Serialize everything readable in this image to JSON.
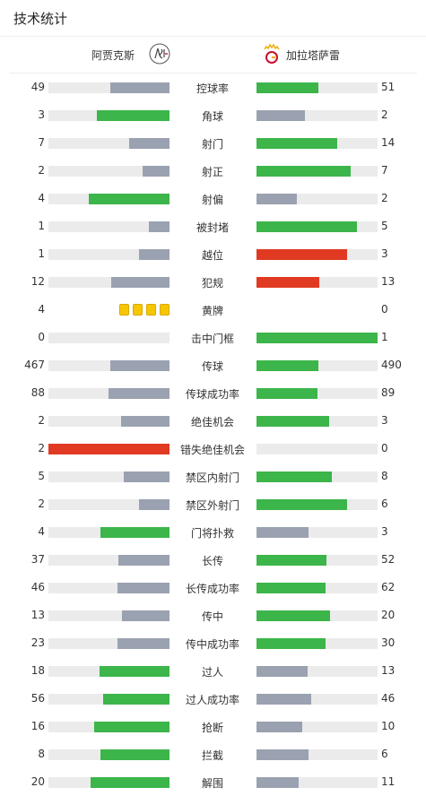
{
  "header": {
    "title": "技术统计"
  },
  "teams": {
    "home": {
      "name": "阿贾克斯",
      "logo_icon": "ajax-crest-icon"
    },
    "away": {
      "name": "加拉塔萨雷",
      "logo_icon": "galatasaray-crest-icon"
    }
  },
  "colors": {
    "green": "#3cb54a",
    "gray": "#9aa1b0",
    "red": "#e03a22",
    "track": "#ebebeb",
    "yellow": "#f6c700"
  },
  "stats": [
    {
      "label": "控球率",
      "home": 49,
      "away": 51,
      "home_fill": 0.49,
      "away_fill": 0.51,
      "home_color": "gray",
      "away_color": "green"
    },
    {
      "label": "角球",
      "home": 3,
      "away": 2,
      "home_fill": 0.6,
      "away_fill": 0.4,
      "home_color": "green",
      "away_color": "gray"
    },
    {
      "label": "射门",
      "home": 7,
      "away": 14,
      "home_fill": 0.33,
      "away_fill": 0.67,
      "home_color": "gray",
      "away_color": "green"
    },
    {
      "label": "射正",
      "home": 2,
      "away": 7,
      "home_fill": 0.22,
      "away_fill": 0.78,
      "home_color": "gray",
      "away_color": "green"
    },
    {
      "label": "射偏",
      "home": 4,
      "away": 2,
      "home_fill": 0.67,
      "away_fill": 0.33,
      "home_color": "green",
      "away_color": "gray"
    },
    {
      "label": "被封堵",
      "home": 1,
      "away": 5,
      "home_fill": 0.17,
      "away_fill": 0.83,
      "home_color": "gray",
      "away_color": "green"
    },
    {
      "label": "越位",
      "home": 1,
      "away": 3,
      "home_fill": 0.25,
      "away_fill": 0.75,
      "home_color": "gray",
      "away_color": "red"
    },
    {
      "label": "犯规",
      "home": 12,
      "away": 13,
      "home_fill": 0.48,
      "away_fill": 0.52,
      "home_color": "gray",
      "away_color": "red"
    },
    {
      "label": "黄牌",
      "home": 4,
      "away": 0,
      "home_cards": 4,
      "away_cards": 0
    },
    {
      "label": "击中门框",
      "home": 0,
      "away": 1,
      "home_fill": 0,
      "away_fill": 1.0,
      "home_color": "gray",
      "away_color": "green"
    },
    {
      "label": "传球",
      "home": 467,
      "away": 490,
      "home_fill": 0.49,
      "away_fill": 0.51,
      "home_color": "gray",
      "away_color": "green"
    },
    {
      "label": "传球成功率",
      "home": 88,
      "away": 89,
      "home_fill": 0.5,
      "away_fill": 0.5,
      "home_color": "gray",
      "away_color": "green"
    },
    {
      "label": "绝佳机会",
      "home": 2,
      "away": 3,
      "home_fill": 0.4,
      "away_fill": 0.6,
      "home_color": "gray",
      "away_color": "green"
    },
    {
      "label": "错失绝佳机会",
      "home": 2,
      "away": 0,
      "home_fill": 1.0,
      "away_fill": 0,
      "home_color": "red",
      "away_color": "gray"
    },
    {
      "label": "禁区内射门",
      "home": 5,
      "away": 8,
      "home_fill": 0.38,
      "away_fill": 0.62,
      "home_color": "gray",
      "away_color": "green"
    },
    {
      "label": "禁区外射门",
      "home": 2,
      "away": 6,
      "home_fill": 0.25,
      "away_fill": 0.75,
      "home_color": "gray",
      "away_color": "green"
    },
    {
      "label": "门将扑救",
      "home": 4,
      "away": 3,
      "home_fill": 0.57,
      "away_fill": 0.43,
      "home_color": "green",
      "away_color": "gray"
    },
    {
      "label": "长传",
      "home": 37,
      "away": 52,
      "home_fill": 0.42,
      "away_fill": 0.58,
      "home_color": "gray",
      "away_color": "green"
    },
    {
      "label": "长传成功率",
      "home": 46,
      "away": 62,
      "home_fill": 0.43,
      "away_fill": 0.57,
      "home_color": "gray",
      "away_color": "green"
    },
    {
      "label": "传中",
      "home": 13,
      "away": 20,
      "home_fill": 0.39,
      "away_fill": 0.61,
      "home_color": "gray",
      "away_color": "green"
    },
    {
      "label": "传中成功率",
      "home": 23,
      "away": 30,
      "home_fill": 0.43,
      "away_fill": 0.57,
      "home_color": "gray",
      "away_color": "green"
    },
    {
      "label": "过人",
      "home": 18,
      "away": 13,
      "home_fill": 0.58,
      "away_fill": 0.42,
      "home_color": "green",
      "away_color": "gray"
    },
    {
      "label": "过人成功率",
      "home": 56,
      "away": 46,
      "home_fill": 0.55,
      "away_fill": 0.45,
      "home_color": "green",
      "away_color": "gray"
    },
    {
      "label": "抢断",
      "home": 16,
      "away": 10,
      "home_fill": 0.62,
      "away_fill": 0.38,
      "home_color": "green",
      "away_color": "gray"
    },
    {
      "label": "拦截",
      "home": 8,
      "away": 6,
      "home_fill": 0.57,
      "away_fill": 0.43,
      "home_color": "green",
      "away_color": "gray"
    },
    {
      "label": "解围",
      "home": 20,
      "away": 11,
      "home_fill": 0.65,
      "away_fill": 0.35,
      "home_color": "green",
      "away_color": "gray"
    }
  ]
}
